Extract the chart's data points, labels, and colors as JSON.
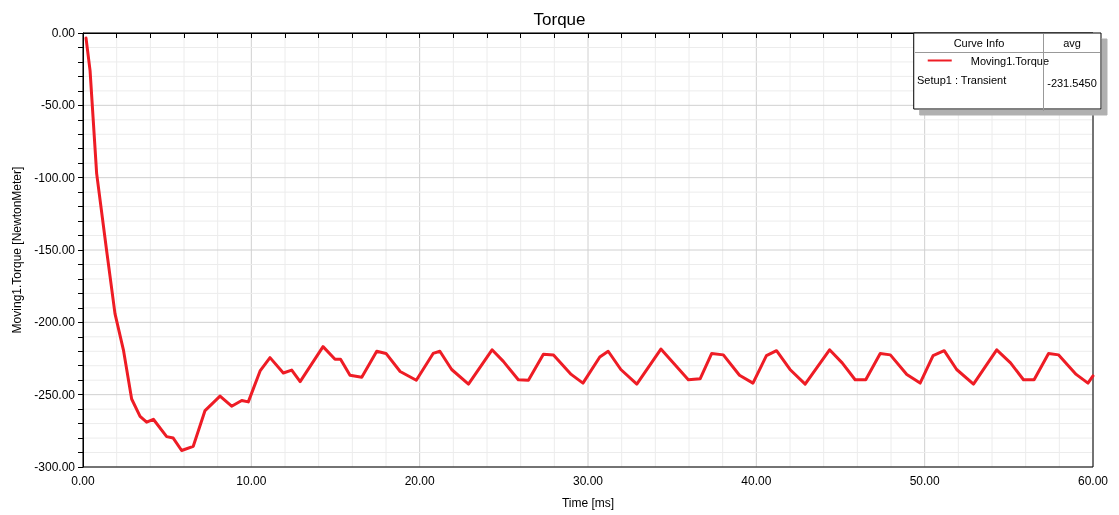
{
  "chart_data": {
    "type": "line",
    "title": "Torque",
    "xlabel": "Time [ms]",
    "ylabel": "Moving1.Torque [NewtonMeter]",
    "legend_title": "Curve Info",
    "legend": "top right",
    "annotations": [
      "avg",
      "Setup1 : Transient",
      "-231.5450"
    ],
    "grid": true,
    "marker": "none",
    "line_style": "solid",
    "xlim": [
      0,
      60
    ],
    "ylim": [
      -300,
      0
    ],
    "xticks": [
      {
        "value": 0,
        "label": "0.00"
      },
      {
        "value": 2,
        "label": null
      },
      {
        "value": 4,
        "label": null
      },
      {
        "value": 6,
        "label": null
      },
      {
        "value": 8,
        "label": null
      },
      {
        "value": 10,
        "label": "10.00"
      },
      {
        "value": 12,
        "label": null
      },
      {
        "value": 14,
        "label": null
      },
      {
        "value": 16,
        "label": null
      },
      {
        "value": 18,
        "label": null
      },
      {
        "value": 20,
        "label": "20.00"
      },
      {
        "value": 22,
        "label": null
      },
      {
        "value": 24,
        "label": null
      },
      {
        "value": 26,
        "label": null
      },
      {
        "value": 28,
        "label": null
      },
      {
        "value": 30,
        "label": "30.00"
      },
      {
        "value": 32,
        "label": null
      },
      {
        "value": 34,
        "label": null
      },
      {
        "value": 36,
        "label": null
      },
      {
        "value": 38,
        "label": null
      },
      {
        "value": 40,
        "label": "40.00"
      },
      {
        "value": 42,
        "label": null
      },
      {
        "value": 44,
        "label": null
      },
      {
        "value": 46,
        "label": null
      },
      {
        "value": 48,
        "label": null
      },
      {
        "value": 50,
        "label": "50.00"
      },
      {
        "value": 52,
        "label": null
      },
      {
        "value": 54,
        "label": null
      },
      {
        "value": 56,
        "label": null
      },
      {
        "value": 58,
        "label": null
      },
      {
        "value": 60,
        "label": "60.00"
      }
    ],
    "yticks": [
      {
        "value": -300,
        "label": "-300.00"
      },
      {
        "value": -290,
        "label": null
      },
      {
        "value": -280,
        "label": null
      },
      {
        "value": -270,
        "label": null
      },
      {
        "value": -260,
        "label": null
      },
      {
        "value": -250,
        "label": "-250.00"
      },
      {
        "value": -240,
        "label": null
      },
      {
        "value": -230,
        "label": null
      },
      {
        "value": -220,
        "label": null
      },
      {
        "value": -210,
        "label": null
      },
      {
        "value": -200,
        "label": "-200.00"
      },
      {
        "value": -190,
        "label": null
      },
      {
        "value": -180,
        "label": null
      },
      {
        "value": -170,
        "label": null
      },
      {
        "value": -160,
        "label": null
      },
      {
        "value": -150,
        "label": "-150.00"
      },
      {
        "value": -140,
        "label": null
      },
      {
        "value": -130,
        "label": null
      },
      {
        "value": -120,
        "label": null
      },
      {
        "value": -110,
        "label": null
      },
      {
        "value": -100,
        "label": "-100.00"
      },
      {
        "value": -90,
        "label": null
      },
      {
        "value": -80,
        "label": null
      },
      {
        "value": -70,
        "label": null
      },
      {
        "value": -60,
        "label": null
      },
      {
        "value": -50,
        "label": "-50.00"
      },
      {
        "value": -40,
        "label": null
      },
      {
        "value": -30,
        "label": null
      },
      {
        "value": -20,
        "label": null
      },
      {
        "value": -10,
        "label": null
      },
      {
        "value": 0,
        "label": "0.00"
      }
    ],
    "series": [
      {
        "name": "Moving1.Torque",
        "color": "#ee1c25",
        "x": [
          0.18,
          0.42,
          0.81,
          1.41,
          1.9,
          2.4,
          2.89,
          3.39,
          3.78,
          4.18,
          4.97,
          5.36,
          5.86,
          6.55,
          7.25,
          8.14,
          8.83,
          9.43,
          9.82,
          10.52,
          11.11,
          11.9,
          12.4,
          12.9,
          14.26,
          14.97,
          15.3,
          15.86,
          16.56,
          17.45,
          18.0,
          18.84,
          19.8,
          20.8,
          21.2,
          21.9,
          22.9,
          24.3,
          24.97,
          25.86,
          26.46,
          27.35,
          27.95,
          29.0,
          29.7,
          30.7,
          31.2,
          31.95,
          32.9,
          34.33,
          35.1,
          35.96,
          36.66,
          37.35,
          38.04,
          39.0,
          39.8,
          40.6,
          41.2,
          42.0,
          42.9,
          44.35,
          45.1,
          45.87,
          46.5,
          47.36,
          47.96,
          48.94,
          49.73,
          50.5,
          51.16,
          51.9,
          52.9,
          54.28,
          55.1,
          55.87,
          56.5,
          57.36,
          57.96,
          59.0,
          59.7,
          60
        ],
        "values": [
          -3.5,
          -26,
          -97,
          -151,
          -194,
          -219,
          -253,
          -265,
          -269,
          -267,
          -279,
          -280,
          -288.6,
          -285.7,
          -261,
          -251,
          -258,
          -254,
          -255,
          -233.6,
          -224.4,
          -235,
          -233,
          -241,
          -216.8,
          -225.5,
          -225.5,
          -236.6,
          -238,
          -220,
          -221.5,
          -234,
          -240,
          -221.5,
          -220,
          -232.6,
          -242.7,
          -219,
          -227,
          -239.7,
          -240,
          -222,
          -222.5,
          -236,
          -242,
          -224,
          -220,
          -232.6,
          -242.7,
          -218.5,
          -228.5,
          -239.7,
          -239,
          -221.5,
          -222.5,
          -236.6,
          -242,
          -223,
          -219.6,
          -232.6,
          -242.7,
          -219,
          -228,
          -239.7,
          -239.7,
          -221.5,
          -222.5,
          -236,
          -242,
          -223,
          -219.6,
          -232.6,
          -242.7,
          -219,
          -228,
          -239.7,
          -239.7,
          -221.5,
          -222.5,
          -236,
          -242,
          -237
        ]
      }
    ]
  }
}
